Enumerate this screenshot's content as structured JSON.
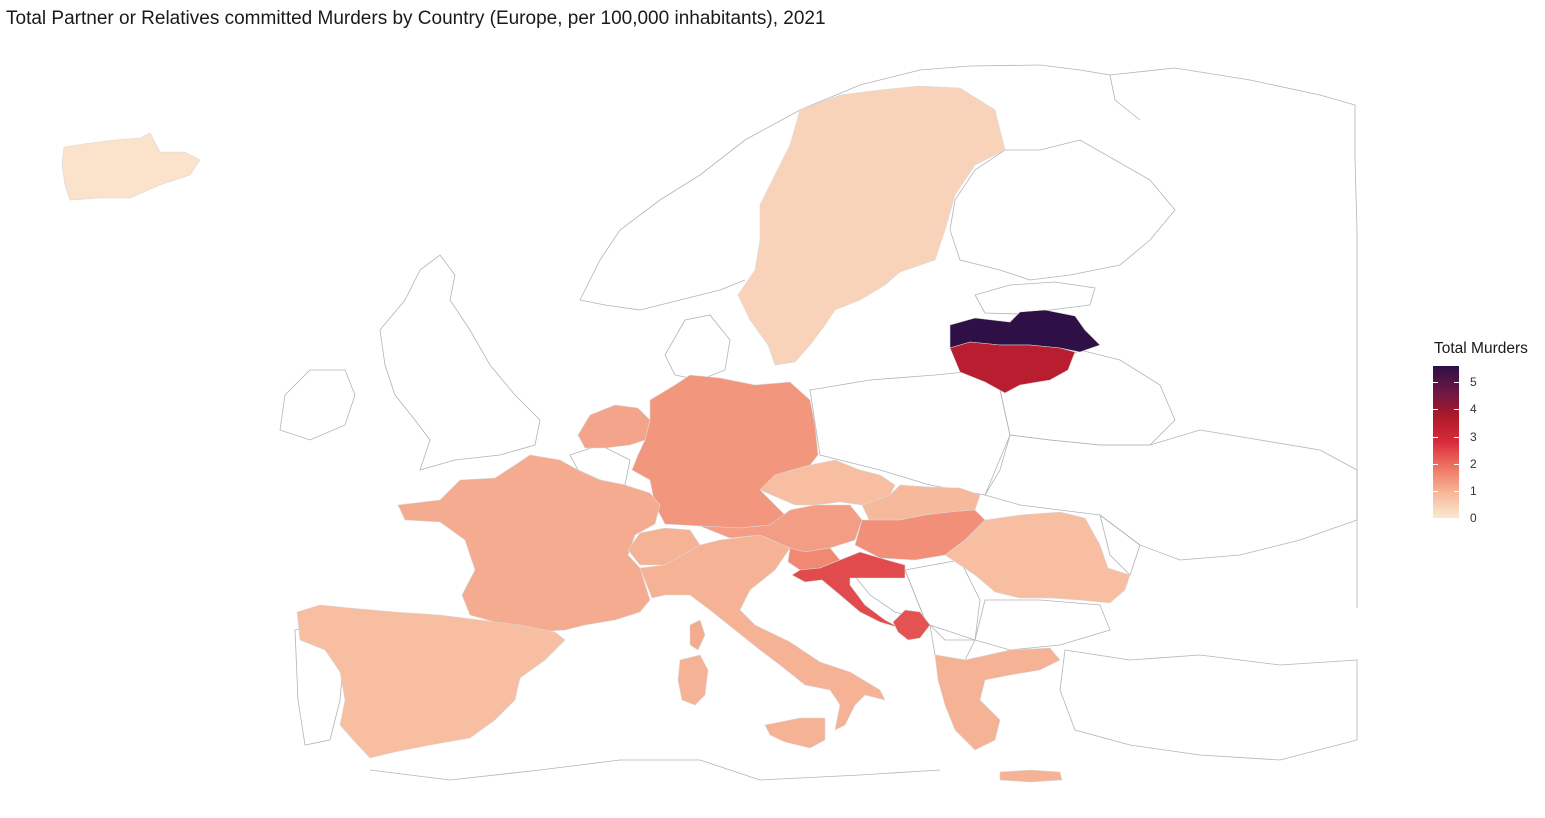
{
  "title": "Total Partner or Relatives committed Murders by Country (Europe, per 100,000 inhabitants), 2021",
  "legend": {
    "title": "Total Murders",
    "ticks": [
      "0",
      "1",
      "2",
      "3",
      "4",
      "5"
    ],
    "min": 0,
    "max": 5.6,
    "colors": [
      "#fbe8d1",
      "#f7b799",
      "#ee7563",
      "#d92b3c",
      "#ad1a2a",
      "#6b1744",
      "#2e1046"
    ]
  },
  "chart_data": {
    "type": "choropleth",
    "title": "Total Partner or Relatives committed Murders by Country (Europe, per 100,000 inhabitants), 2021",
    "legend_title": "Total Murders",
    "scale_range": [
      0,
      5.6
    ],
    "regions": [
      {
        "name": "Iceland",
        "value": 0.1
      },
      {
        "name": "Sweden",
        "value": 0.4
      },
      {
        "name": "Latvia",
        "value": 5.6
      },
      {
        "name": "Lithuania",
        "value": 3.5
      },
      {
        "name": "Netherlands",
        "value": 1.2
      },
      {
        "name": "Germany",
        "value": 1.4
      },
      {
        "name": "France",
        "value": 1.1
      },
      {
        "name": "Spain",
        "value": 0.8
      },
      {
        "name": "Italy",
        "value": 1.0
      },
      {
        "name": "Switzerland",
        "value": 1.0
      },
      {
        "name": "Austria",
        "value": 1.3
      },
      {
        "name": "Czechia",
        "value": 0.8
      },
      {
        "name": "Slovakia",
        "value": 0.9
      },
      {
        "name": "Hungary",
        "value": 1.5
      },
      {
        "name": "Slovenia",
        "value": 1.6
      },
      {
        "name": "Croatia",
        "value": 2.4
      },
      {
        "name": "Montenegro",
        "value": 2.3
      },
      {
        "name": "Romania",
        "value": 0.8
      },
      {
        "name": "Greece",
        "value": 1.0
      }
    ]
  }
}
